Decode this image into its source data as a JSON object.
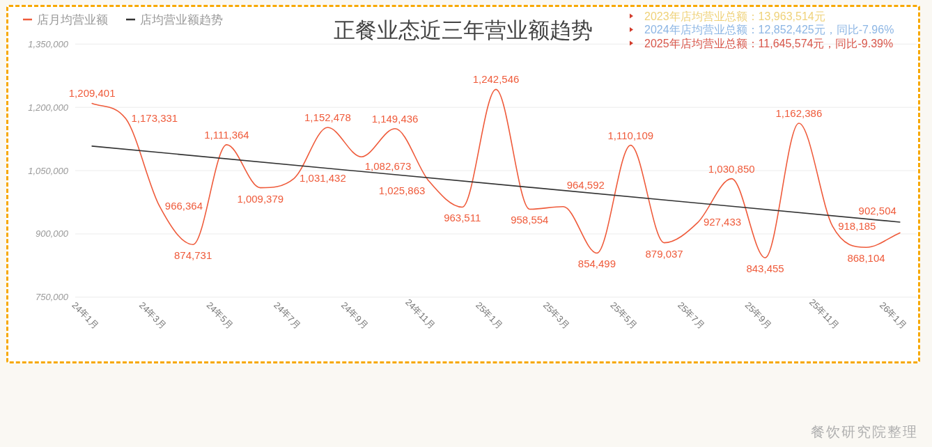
{
  "chart_data": {
    "type": "line",
    "title": "正餐业态近三年营业额趋势",
    "categories": [
      "24年1月",
      null,
      "24年3月",
      null,
      "24年5月",
      null,
      "24年7月",
      null,
      "24年9月",
      null,
      "24年11月",
      null,
      "25年1月",
      null,
      "25年3月",
      null,
      "25年5月",
      null,
      "25年7月",
      null,
      "25年9月",
      null,
      "25年11月",
      null,
      "26年1月"
    ],
    "series": [
      {
        "name": "店月均营业额",
        "color": "#ef5b3b",
        "values": [
          1209401,
          1173331,
          966364,
          874731,
          1111364,
          1009379,
          1031432,
          1152478,
          1082673,
          1149436,
          1025863,
          963511,
          1242546,
          958554,
          964592,
          854499,
          1110109,
          879037,
          927433,
          1030850,
          843455,
          1162386,
          918185,
          868104,
          902504
        ],
        "value_labels": [
          "1,209,401",
          "1,173,331",
          "966,364",
          "874,731",
          "1,111,364",
          "1,009,379",
          "1,031,432",
          "1,152,478",
          "1,082,673",
          "1,149,436",
          "1,025,863",
          "963,511",
          "1,242,546",
          "958,554",
          "964,592",
          "854,499",
          "1,110,109",
          "879,037",
          "927,433",
          "1,030,850",
          "843,455",
          "1,162,386",
          "918,185",
          "868,104",
          "902,504"
        ]
      },
      {
        "name": "店均营业额趋势",
        "color": "#333333",
        "x": [
          "24年1月",
          "26年1月"
        ],
        "values": [
          1108000,
          928000
        ]
      }
    ],
    "ylim": [
      750000,
      1350000
    ],
    "yticks": [
      {
        "value": 750000,
        "label": "750,000"
      },
      {
        "value": 900000,
        "label": "900,000"
      },
      {
        "value": 1050000,
        "label": "1,050,000"
      },
      {
        "value": 1200000,
        "label": "1,200,000"
      },
      {
        "value": 1350000,
        "label": "1,350,000"
      }
    ],
    "grid": "y",
    "legend": "top left",
    "annotations": [
      "2023年店均营业总额：13,963,514元",
      "2024年店均营业总额：12,852,425元，同比-7.96%",
      "2025年店均营业总额：11,645,574元，同比-9.39%",
      "餐饮研究院整理"
    ]
  }
}
